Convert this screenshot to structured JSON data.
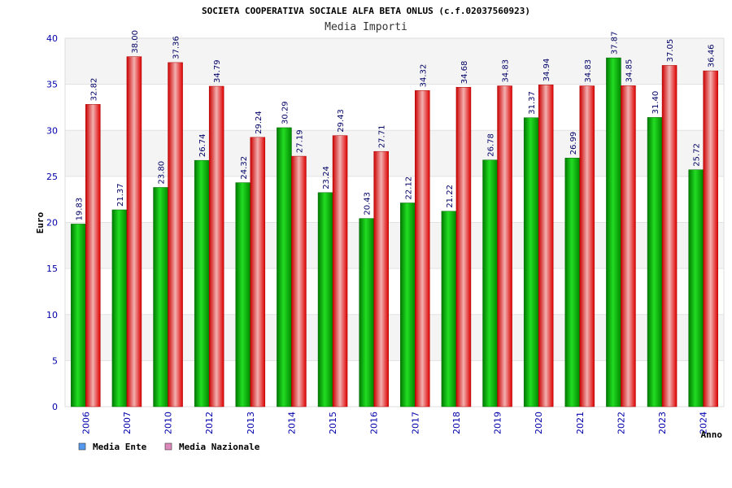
{
  "chart_data": {
    "type": "bar",
    "title": "SOCIETA COOPERATIVA SOCIALE ALFA BETA ONLUS (c.f.02037560923)",
    "subtitle": "Media Importi",
    "xlabel": "Anno",
    "ylabel": "Euro",
    "ylim": [
      0,
      40
    ],
    "yticks": [
      0,
      5,
      10,
      15,
      20,
      25,
      30,
      35,
      40
    ],
    "grid": true,
    "legend_position": "bottom-left",
    "categories": [
      "2006",
      "2007",
      "2010",
      "2012",
      "2013",
      "2014",
      "2015",
      "2016",
      "2017",
      "2018",
      "2019",
      "2020",
      "2021",
      "2022",
      "2023",
      "2024"
    ],
    "series": [
      {
        "name": "Media Ente",
        "legend_color": "#5599ee",
        "color": "#00bb00",
        "values": [
          19.83,
          21.37,
          23.8,
          26.74,
          24.32,
          30.29,
          23.24,
          20.43,
          22.12,
          21.22,
          26.78,
          31.37,
          26.99,
          37.87,
          31.4,
          25.72
        ],
        "labels": [
          "19.83",
          "21.37",
          "23.80",
          "26.74",
          "24.32",
          "30.29",
          "23.24",
          "20.43",
          "22.12",
          "21.22",
          "26.78",
          "31.37",
          "26.99",
          "37.87",
          "31.40",
          "25.72"
        ]
      },
      {
        "name": "Media Nazionale",
        "legend_color": "#dd88bb",
        "color": "#ee1111",
        "values": [
          32.82,
          38.0,
          37.36,
          34.79,
          29.24,
          27.19,
          29.43,
          27.71,
          34.32,
          34.68,
          34.83,
          34.94,
          34.83,
          34.85,
          37.05,
          36.46
        ],
        "labels": [
          "32.82",
          "38.00",
          "37.36",
          "34.79",
          "29.24",
          "27.19",
          "29.43",
          "27.71",
          "34.32",
          "34.68",
          "34.83",
          "34.94",
          "34.83",
          "34.85",
          "37.05",
          "36.46"
        ]
      }
    ]
  }
}
